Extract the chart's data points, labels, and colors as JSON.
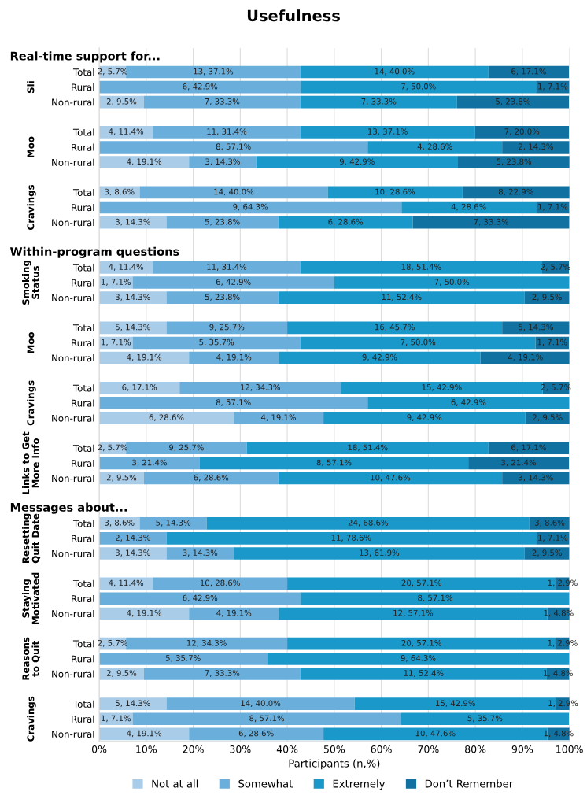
{
  "chart_data": {
    "type": "bar",
    "orientation": "horizontal",
    "stacked": true,
    "title": "Usefulness",
    "xlabel": "Participants (n,%)",
    "categories": [
      "Real-time support for...",
      "Total",
      "Rural",
      "Non-rural",
      null,
      "Total",
      "Rural",
      "Non-rural",
      null,
      "Total",
      "Rural",
      "Non-rural",
      null,
      "Within-program questions",
      "Total",
      "Rural",
      "Non-rural",
      null,
      "Total",
      "Rural",
      "Non-rural",
      null,
      "Total",
      "Rural",
      "Non-rural",
      null,
      "Total",
      "Rural",
      "Non-rural",
      null,
      "Messages about...",
      "Total",
      "Rural",
      "Non-rural",
      null,
      "Total",
      "Rural",
      "Non-rural",
      null,
      "Total",
      "Rural",
      "Non-rural",
      null,
      "Total",
      "Rural",
      "Non-rural"
    ],
    "annotations": [
      "Sli",
      "Moo",
      "Cravings",
      "Smoking\nStatus",
      "Moo",
      "Cravings",
      "Links to Get\nMore Info",
      "Resetting\nQuit Date",
      "Staying\nMotivated",
      "Reasons\nto Quit",
      "Cravings"
    ],
    "series": [
      {
        "name": "Not at all",
        "color": "#a9cde9",
        "values": [
          null,
          5.7,
          null,
          9.5,
          null,
          11.4,
          null,
          19.1,
          null,
          8.6,
          null,
          14.3,
          null,
          null,
          11.4,
          7.1,
          14.3,
          null,
          14.3,
          7.1,
          19.1,
          null,
          17.1,
          null,
          28.6,
          null,
          5.7,
          null,
          9.5,
          null,
          null,
          8.6,
          null,
          14.3,
          null,
          11.4,
          null,
          19.1,
          null,
          5.7,
          null,
          9.5,
          null,
          14.3,
          7.1,
          19.1
        ],
        "value_labels": [
          null,
          "2, 5.7%",
          null,
          "2, 9.5%",
          null,
          "4, 11.4%",
          null,
          "4, 19.1%",
          null,
          "3, 8.6%",
          null,
          "3, 14.3%",
          null,
          null,
          "4, 11.4%",
          "1, 7.1%",
          "3, 14.3%",
          null,
          "5, 14.3%",
          "1, 7.1%",
          "4, 19.1%",
          null,
          "6, 17.1%",
          null,
          "6, 28.6%",
          null,
          "2, 5.7%",
          null,
          "2, 9.5%",
          null,
          null,
          "3, 8.6%",
          null,
          "3, 14.3%",
          null,
          "4, 11.4%",
          null,
          "4, 19.1%",
          null,
          "2, 5.7%",
          null,
          "2, 9.5%",
          null,
          "5, 14.3%",
          "1, 7.1%",
          "4, 19.1%"
        ]
      },
      {
        "name": "Somewhat",
        "color": "#6aafdc",
        "values": [
          null,
          37.1,
          42.9,
          33.3,
          null,
          31.4,
          57.1,
          14.3,
          null,
          40.0,
          64.3,
          23.8,
          null,
          null,
          31.4,
          42.9,
          23.8,
          null,
          25.7,
          35.7,
          19.1,
          null,
          34.3,
          57.1,
          19.1,
          null,
          25.7,
          21.4,
          28.6,
          null,
          null,
          14.3,
          14.3,
          14.3,
          null,
          28.6,
          42.9,
          19.1,
          null,
          34.3,
          35.7,
          33.3,
          null,
          40.0,
          57.1,
          28.6
        ],
        "value_labels": [
          null,
          "13, 37.1%",
          "6, 42.9%",
          "7, 33.3%",
          null,
          "11, 31.4%",
          "8, 57.1%",
          "3, 14.3%",
          null,
          "14, 40.0%",
          "9, 64.3%",
          "5, 23.8%",
          null,
          null,
          "11, 31.4%",
          "6, 42.9%",
          "5, 23.8%",
          null,
          "9, 25.7%",
          "5, 35.7%",
          "4, 19.1%",
          null,
          "12, 34.3%",
          "8, 57.1%",
          "4, 19.1%",
          null,
          "9, 25.7%",
          "3, 21.4%",
          "6, 28.6%",
          null,
          null,
          "5, 14.3%",
          "2, 14.3%",
          "3, 14.3%",
          null,
          "10, 28.6%",
          "6, 42.9%",
          "4, 19.1%",
          null,
          "12, 34.3%",
          "5, 35.7%",
          "7, 33.3%",
          null,
          "14, 40.0%",
          "8, 57.1%",
          "6, 28.6%"
        ]
      },
      {
        "name": "Extremely",
        "color": "#1a98ca",
        "values": [
          null,
          40.0,
          50.0,
          33.3,
          null,
          37.1,
          28.6,
          42.9,
          null,
          28.6,
          28.6,
          28.6,
          null,
          null,
          51.4,
          50.0,
          52.4,
          null,
          45.7,
          50.0,
          42.9,
          null,
          42.9,
          42.9,
          42.9,
          null,
          51.4,
          57.1,
          47.6,
          null,
          null,
          68.6,
          78.6,
          61.9,
          null,
          57.1,
          57.1,
          57.1,
          null,
          57.1,
          64.3,
          52.4,
          null,
          42.9,
          35.7,
          47.6
        ],
        "value_labels": [
          null,
          "14, 40.0%",
          "7, 50.0%",
          "7, 33.3%",
          null,
          "13, 37.1%",
          "4, 28.6%",
          "9, 42.9%",
          null,
          "10, 28.6%",
          "4, 28.6%",
          "6, 28.6%",
          null,
          null,
          "18, 51.4%",
          "7, 50.0%",
          "11, 52.4%",
          null,
          "16, 45.7%",
          "7, 50.0%",
          "9, 42.9%",
          null,
          "15, 42.9%",
          "6, 42.9%",
          "9, 42.9%",
          null,
          "18, 51.4%",
          "8, 57.1%",
          "10, 47.6%",
          null,
          null,
          "24, 68.6%",
          "11, 78.6%",
          "13, 61.9%",
          null,
          "20, 57.1%",
          "8, 57.1%",
          "12, 57.1%",
          null,
          "20, 57.1%",
          "9, 64.3%",
          "11, 52.4%",
          null,
          "15, 42.9%",
          "5, 35.7%",
          "10, 47.6%"
        ]
      },
      {
        "name": "Don’t Remember",
        "color": "#1172a1",
        "values": [
          null,
          17.1,
          7.1,
          23.8,
          null,
          20.0,
          14.3,
          23.8,
          null,
          22.9,
          7.1,
          33.3,
          null,
          null,
          5.7,
          null,
          9.5,
          null,
          14.3,
          7.1,
          19.1,
          null,
          5.7,
          null,
          9.5,
          null,
          17.1,
          21.4,
          14.3,
          null,
          null,
          8.6,
          7.1,
          9.5,
          null,
          2.9,
          null,
          4.8,
          null,
          2.9,
          null,
          4.8,
          null,
          2.9,
          null,
          4.8
        ],
        "value_labels": [
          null,
          "6, 17.1%",
          "1, 7.1%",
          "5, 23.8%",
          null,
          "7, 20.0%",
          "2, 14.3%",
          "5, 23.8%",
          null,
          "8, 22.9%",
          "1, 7.1%",
          "7, 33.3%",
          null,
          null,
          "2, 5.7%",
          null,
          "2, 9.5%",
          null,
          "5, 14.3%",
          "1, 7.1%",
          "4, 19.1%",
          null,
          "2, 5.7%",
          null,
          "2, 9.5%",
          null,
          "6, 17.1%",
          "3, 21.4%",
          "3, 14.3%",
          null,
          null,
          "3, 8.6%",
          "1, 7.1%",
          "2, 9.5%",
          null,
          "1, 2.9%",
          null,
          "1, 4.8%",
          null,
          "1, 2.9%",
          null,
          "1, 4.8%",
          null,
          "1, 2.9%",
          null,
          "1, 4.8%"
        ]
      }
    ],
    "xlim": [
      0,
      100
    ],
    "xticks": [
      {
        "value": 0,
        "label": "0%"
      },
      {
        "value": 10,
        "label": "10%"
      },
      {
        "value": 20,
        "label": "20%"
      },
      {
        "value": 30,
        "label": "30%"
      },
      {
        "value": 40,
        "label": "40%"
      },
      {
        "value": 50,
        "label": "50%"
      },
      {
        "value": 60,
        "label": "60%"
      },
      {
        "value": 70,
        "label": "70%"
      },
      {
        "value": 80,
        "label": "80%"
      },
      {
        "value": 90,
        "label": "90%"
      },
      {
        "value": 100,
        "label": "100%"
      }
    ],
    "grid": "x",
    "legend": "bottom"
  }
}
